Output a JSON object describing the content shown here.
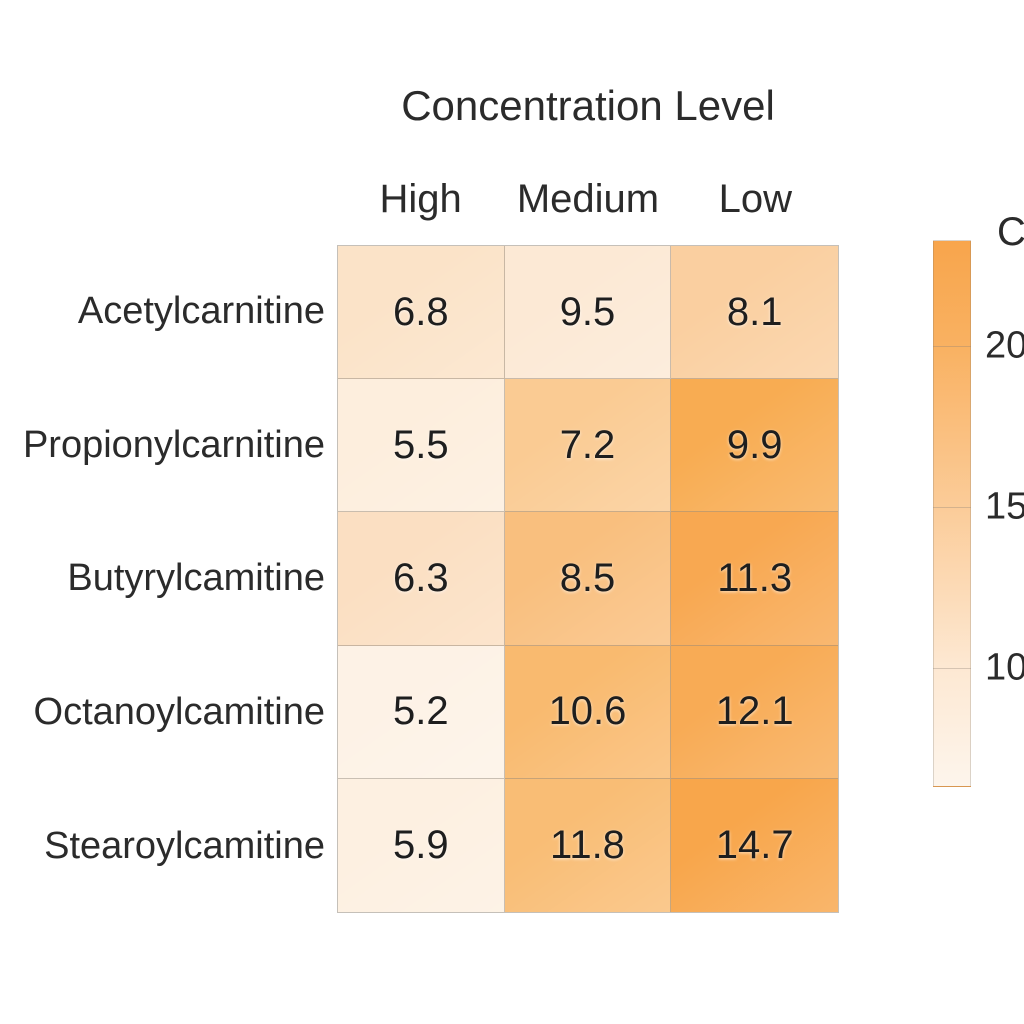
{
  "chart_data": {
    "type": "heatmap",
    "title": "Concentration Level",
    "x_categories": [
      "High",
      "Medium",
      "Low"
    ],
    "y_categories": [
      "Acetylcarnitine",
      "Propionylcarnitine",
      "Butyrylcamitine",
      "Octanoylcamitine",
      "Stearoylcamitine"
    ],
    "values": [
      [
        6.8,
        9.5,
        8.1
      ],
      [
        5.5,
        7.2,
        9.9
      ],
      [
        6.3,
        8.5,
        11.3
      ],
      [
        5.2,
        10.6,
        12.1
      ],
      [
        5.9,
        11.8,
        14.7
      ]
    ],
    "cell_colors": [
      [
        "#fbe3c8",
        "#fce9d5",
        "#facfa0"
      ],
      [
        "#fdeedd",
        "#facb93",
        "#f8ac52"
      ],
      [
        "#fbdfc2",
        "#f9bf7e",
        "#f8a851"
      ],
      [
        "#fdf2e6",
        "#f9ba6f",
        "#f8ab55"
      ],
      [
        "#fdf0e1",
        "#f9bd75",
        "#f8a64b"
      ]
    ],
    "colorbar": {
      "label": "CV",
      "ticks": [
        20,
        15,
        10
      ],
      "vmin": 6.3,
      "vmax": 23.3,
      "gradient": [
        {
          "pos": 0,
          "color": "#f8a54c"
        },
        {
          "pos": 0.19,
          "color": "#f9b161"
        },
        {
          "pos": 0.49,
          "color": "#fbcc99"
        },
        {
          "pos": 0.78,
          "color": "#fde8d2"
        },
        {
          "pos": 1,
          "color": "#fdf5ec"
        }
      ]
    },
    "legend_position": "right",
    "grid": false
  }
}
